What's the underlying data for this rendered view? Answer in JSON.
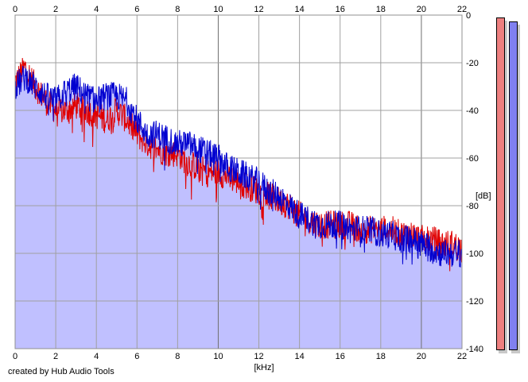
{
  "chart_data": {
    "type": "area",
    "title": "",
    "xlabel": "[kHz]",
    "ylabel": "[dB]",
    "xlim": [
      0,
      22
    ],
    "ylim": [
      -140,
      0
    ],
    "x_ticks": [
      "0",
      "2",
      "4",
      "6",
      "8",
      "10",
      "12",
      "14",
      "16",
      "18",
      "20",
      "22"
    ],
    "y_ticks": [
      "0",
      "-20",
      "-40",
      "-60",
      "-80",
      "-100",
      "-120",
      "-140"
    ],
    "grid": true,
    "colors": {
      "fill": "#c0c0ff",
      "left_channel": "#e00000",
      "right_channel": "#0000d0",
      "grid": "#a0a0a0",
      "major_grid": "#707070"
    },
    "series": [
      {
        "color": "#e00000",
        "x": [
          0,
          0.5,
          1,
          1.5,
          2,
          2.5,
          3,
          3.5,
          4,
          4.5,
          5,
          5.5,
          6,
          6.5,
          7,
          7.5,
          8,
          8.5,
          9,
          9.5,
          10,
          10.5,
          11,
          11.5,
          12,
          12.5,
          13,
          13.5,
          14,
          14.5,
          15,
          15.5,
          16,
          16.5,
          17,
          17.5,
          18,
          18.5,
          19,
          19.5,
          20,
          20.5,
          21,
          21.5,
          22
        ],
        "values": [
          -28,
          -22,
          -30,
          -36,
          -40,
          -40,
          -38,
          -40,
          -42,
          -44,
          -40,
          -44,
          -50,
          -54,
          -56,
          -58,
          -58,
          -62,
          -64,
          -66,
          -66,
          -68,
          -70,
          -72,
          -74,
          -76,
          -78,
          -80,
          -84,
          -86,
          -88,
          -88,
          -88,
          -88,
          -90,
          -90,
          -90,
          -90,
          -92,
          -92,
          -94,
          -94,
          -96,
          -96,
          -98
        ]
      },
      {
        "color": "#0000d0",
        "x": [
          0,
          0.5,
          1,
          1.5,
          2,
          2.5,
          3,
          3.5,
          4,
          4.5,
          5,
          5.5,
          6,
          6.5,
          7,
          7.5,
          8,
          8.5,
          9,
          9.5,
          10,
          10.5,
          11,
          11.5,
          12,
          12.5,
          13,
          13.5,
          14,
          14.5,
          15,
          15.5,
          16,
          16.5,
          17,
          17.5,
          18,
          18.5,
          19,
          19.5,
          20,
          20.5,
          21,
          21.5,
          22
        ],
        "values": [
          -30,
          -26,
          -30,
          -34,
          -36,
          -32,
          -30,
          -34,
          -36,
          -34,
          -34,
          -36,
          -44,
          -50,
          -50,
          -52,
          -54,
          -54,
          -56,
          -58,
          -60,
          -64,
          -66,
          -68,
          -70,
          -74,
          -76,
          -80,
          -84,
          -86,
          -88,
          -88,
          -88,
          -90,
          -90,
          -90,
          -92,
          -92,
          -94,
          -94,
          -96,
          -98,
          -100,
          -100,
          -100
        ]
      }
    ]
  },
  "meters": {
    "left_level": 1.0,
    "right_level": 0.988
  },
  "footer": {
    "credit": "created by Hub Audio Tools"
  }
}
